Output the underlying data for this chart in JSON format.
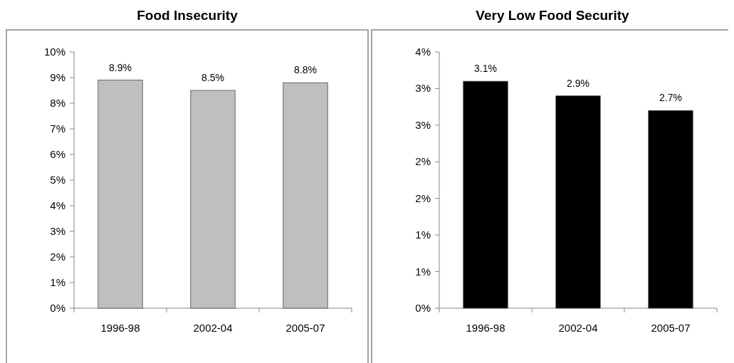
{
  "chart_data": [
    {
      "type": "bar",
      "title": "Food Insecurity",
      "categories": [
        "1996-98",
        "2002-04",
        "2005-07"
      ],
      "values": [
        8.9,
        8.5,
        8.8
      ],
      "value_labels": [
        "8.9%",
        "8.5%",
        "8.8%"
      ],
      "color": "#bfbfbf",
      "ylim": [
        0,
        10
      ],
      "yticks": [
        {
          "value": 0,
          "label": "0%"
        },
        {
          "value": 1,
          "label": "1%"
        },
        {
          "value": 2,
          "label": "2%"
        },
        {
          "value": 3,
          "label": "3%"
        },
        {
          "value": 4,
          "label": "4%"
        },
        {
          "value": 5,
          "label": "5%"
        },
        {
          "value": 6,
          "label": "6%"
        },
        {
          "value": 7,
          "label": "7%"
        },
        {
          "value": 8,
          "label": "8%"
        },
        {
          "value": 9,
          "label": "9%"
        },
        {
          "value": 10,
          "label": "10%"
        }
      ]
    },
    {
      "type": "bar",
      "title": "Very Low Food Security",
      "categories": [
        "1996-98",
        "2002-04",
        "2005-07"
      ],
      "values": [
        3.1,
        2.9,
        2.7
      ],
      "value_labels": [
        "3.1%",
        "2.9%",
        "2.7%"
      ],
      "color": "#000000",
      "ylim": [
        0,
        3.5
      ],
      "yticks": [
        {
          "value": 0,
          "label": "0%"
        },
        {
          "value": 0.5,
          "label": "1%"
        },
        {
          "value": 1,
          "label": "1%"
        },
        {
          "value": 1.5,
          "label": "2%"
        },
        {
          "value": 2,
          "label": "2%"
        },
        {
          "value": 2.5,
          "label": "3%"
        },
        {
          "value": 3,
          "label": "3%"
        },
        {
          "value": 3.5,
          "label": "4%"
        }
      ]
    }
  ]
}
